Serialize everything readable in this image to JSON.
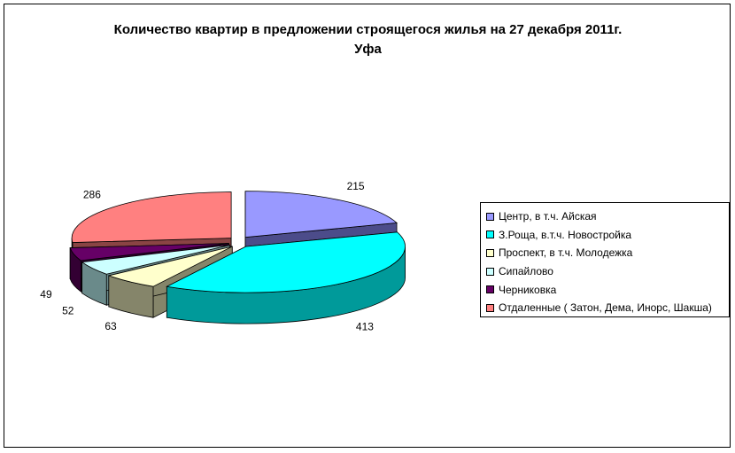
{
  "chart_data": {
    "type": "pie",
    "title_line1": "Количество квартир в предложении строящегося жилья на 27 декабря 2011г.",
    "title_line2": "Уфа",
    "categories": [
      "Центр, в т.ч. Айская",
      "З.Роща, в.т.ч. Новостройка",
      "Проспект, в т.ч. Молодежка",
      "Сипайлово",
      "Черниковка",
      "Отдаленные ( Затон, Дема, Инорс, Шакша)"
    ],
    "values": [
      215,
      413,
      63,
      52,
      49,
      286
    ],
    "colors": [
      "#9999FF",
      "#00FFFF",
      "#FFFFCC",
      "#CCFFFF",
      "#660066",
      "#FF8080"
    ],
    "side_colors": [
      "#4C4C8A",
      "#009A9A",
      "#85856A",
      "#6A8A8A",
      "#330033",
      "#8A4444"
    ],
    "exploded": true,
    "style": "3d",
    "legend_position": "right"
  }
}
